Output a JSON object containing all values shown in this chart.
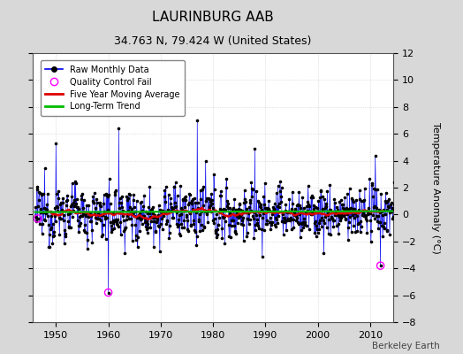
{
  "title": "LAURINBURG AAB",
  "subtitle": "34.763 N, 79.424 W (United States)",
  "ylabel": "Temperature Anomaly (°C)",
  "ylim": [
    -8,
    12
  ],
  "yticks": [
    -8,
    -6,
    -4,
    -2,
    0,
    2,
    4,
    6,
    8,
    10,
    12
  ],
  "xticks": [
    1950,
    1960,
    1970,
    1980,
    1990,
    2000,
    2010
  ],
  "xlim": [
    1945.5,
    2014.5
  ],
  "start_year": 1946,
  "end_year": 2014,
  "figure_bg": "#d8d8d8",
  "plot_bg": "#ffffff",
  "raw_line_color": "#0000ee",
  "raw_marker_color": "#000000",
  "moving_avg_color": "#dd0000",
  "trend_color": "#00bb00",
  "qc_fail_color": "#ff00ff",
  "watermark": "Berkeley Earth",
  "title_fontsize": 11,
  "subtitle_fontsize": 9,
  "tick_fontsize": 8,
  "ylabel_fontsize": 8
}
